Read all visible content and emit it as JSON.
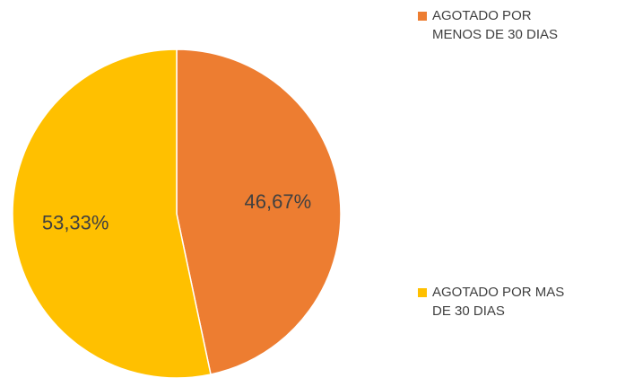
{
  "chart_data": {
    "type": "pie",
    "categories": [
      "AGOTADO POR MENOS DE 30 DIAS",
      "AGOTADO POR MAS DE 30 DIAS"
    ],
    "values": [
      46.67,
      53.33
    ],
    "value_labels": [
      "46,67%",
      "53,33%"
    ],
    "colors": [
      "#ED7D31",
      "#FFC000"
    ],
    "legend": "right"
  }
}
